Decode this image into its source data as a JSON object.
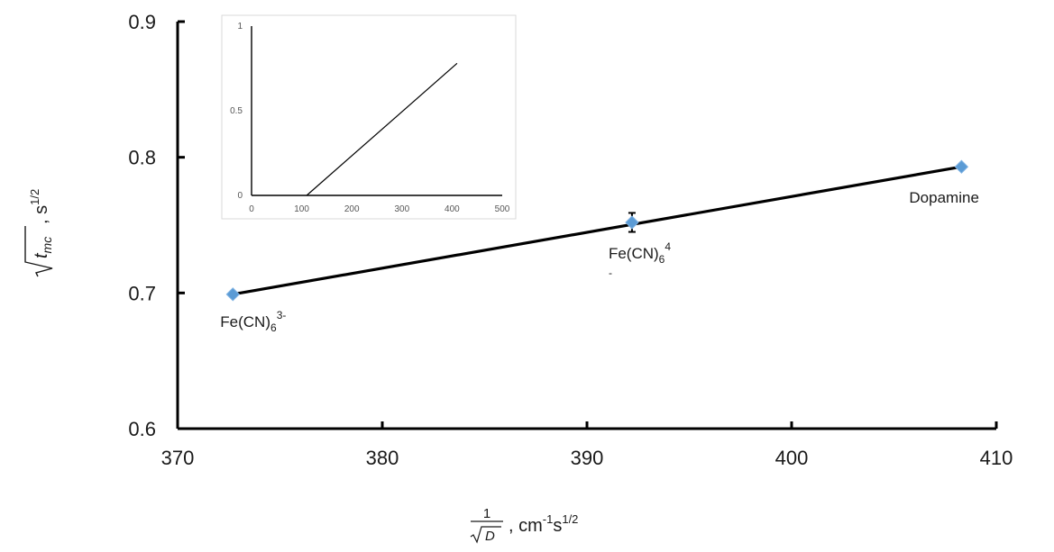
{
  "chart_data": [
    {
      "type": "scatter",
      "title": "",
      "xlabel": "1/√D , cm⁻¹s¹ᐟ²",
      "ylabel": "√t_mc , s¹ᐟ²",
      "xlim": [
        370,
        410
      ],
      "ylim": [
        0.6,
        0.9
      ],
      "x_ticks": [
        "370",
        "380",
        "390",
        "400",
        "410"
      ],
      "y_ticks": [
        "0.6",
        "0.7",
        "0.8",
        "0.9"
      ],
      "grid": false,
      "marker_color": "#5b9bd5",
      "line_color": "#000000",
      "points": [
        {
          "x": 372.7,
          "y": 0.699,
          "label": "Fe(CN)",
          "sub": "6",
          "sup": "3-",
          "error": 0.0
        },
        {
          "x": 392.2,
          "y": 0.752,
          "label": "Fe(CN)",
          "sub": "6",
          "sup": "4",
          "tail": "-",
          "error": 0.007
        },
        {
          "x": 408.3,
          "y": 0.793,
          "label": "Dopamine",
          "error": 0.0
        }
      ],
      "fit_line": {
        "x": [
          372.7,
          408.3
        ],
        "y": [
          0.699,
          0.793
        ]
      }
    },
    {
      "type": "line",
      "title": "",
      "xlim": [
        0,
        500
      ],
      "ylim": [
        0,
        1
      ],
      "x_ticks": [
        "0",
        "100",
        "200",
        "300",
        "400",
        "500"
      ],
      "y_ticks": [
        "0",
        "0.5",
        "1"
      ],
      "series": [
        {
          "x": [
            110,
            410
          ],
          "y": [
            0,
            0.78
          ]
        }
      ]
    }
  ]
}
